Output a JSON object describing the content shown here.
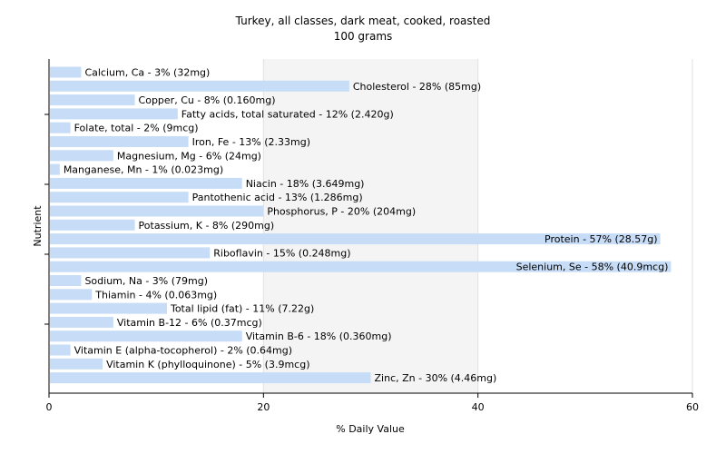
{
  "chart_data": {
    "type": "bar",
    "orientation": "horizontal",
    "title": "Turkey, all classes, dark meat, cooked, roasted",
    "subtitle": "100 grams",
    "xlabel": "% Daily Value",
    "ylabel": "Nutrient",
    "xlim": [
      0,
      60
    ],
    "xticks": [
      0,
      20,
      40,
      60
    ],
    "grid": true,
    "bar_color": "#c6dcf7",
    "categories": [
      "Calcium, Ca",
      "Cholesterol",
      "Copper, Cu",
      "Fatty acids, total saturated",
      "Folate, total",
      "Iron, Fe",
      "Magnesium, Mg",
      "Manganese, Mn",
      "Niacin",
      "Pantothenic acid",
      "Phosphorus, P",
      "Potassium, K",
      "Protein",
      "Riboflavin",
      "Selenium, Se",
      "Sodium, Na",
      "Thiamin",
      "Total lipid (fat)",
      "Vitamin B-12",
      "Vitamin B-6",
      "Vitamin E (alpha-tocopherol)",
      "Vitamin K (phylloquinone)",
      "Zinc, Zn"
    ],
    "values": [
      3,
      28,
      8,
      12,
      2,
      13,
      6,
      1,
      18,
      13,
      20,
      8,
      57,
      15,
      58,
      3,
      4,
      11,
      6,
      18,
      2,
      5,
      30
    ],
    "labels": [
      "Calcium, Ca - 3% (32mg)",
      "Cholesterol - 28% (85mg)",
      "Copper, Cu - 8% (0.160mg)",
      "Fatty acids, total saturated - 12% (2.420g)",
      "Folate, total - 2% (9mcg)",
      "Iron, Fe - 13% (2.33mg)",
      "Magnesium, Mg - 6% (24mg)",
      "Manganese, Mn - 1% (0.023mg)",
      "Niacin - 18% (3.649mg)",
      "Pantothenic acid - 13% (1.286mg)",
      "Phosphorus, P - 20% (204mg)",
      "Potassium, K - 8% (290mg)",
      "Protein - 57% (28.57g)",
      "Riboflavin - 15% (0.248mg)",
      "Selenium, Se - 58% (40.9mcg)",
      "Sodium, Na - 3% (79mg)",
      "Thiamin - 4% (0.063mg)",
      "Total lipid (fat) - 11% (7.22g)",
      "Vitamin B-12 - 6% (0.37mcg)",
      "Vitamin B-6 - 18% (0.360mg)",
      "Vitamin E (alpha-tocopherol) - 2% (0.64mg)",
      "Vitamin K (phylloquinone) - 5% (3.9mcg)",
      "Zinc, Zn - 30% (4.46mg)"
    ]
  }
}
